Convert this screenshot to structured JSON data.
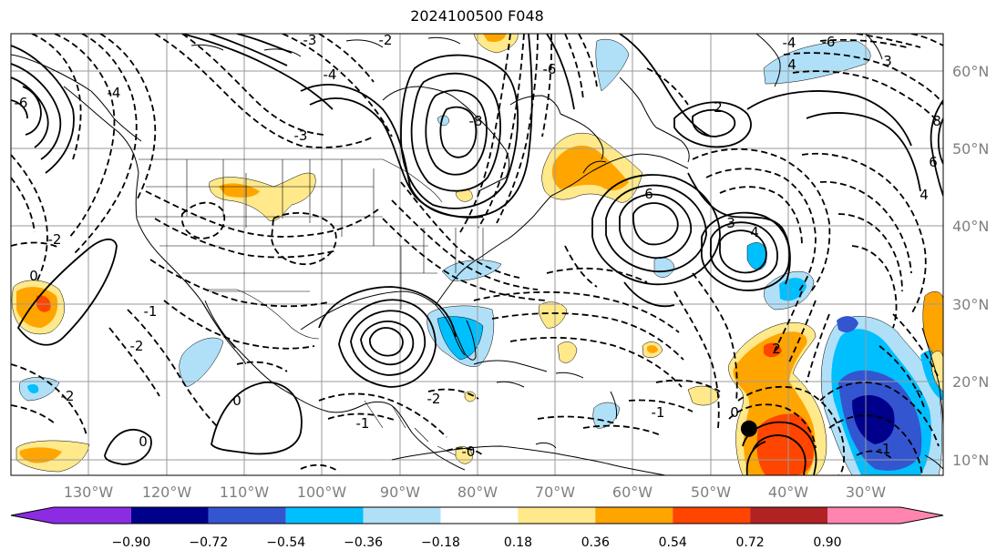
{
  "title": "2024100500 F048",
  "map": {
    "lon_labels": [
      "130°W",
      "120°W",
      "110°W",
      "100°W",
      "90°W",
      "80°W",
      "70°W",
      "60°W",
      "50°W",
      "40°W",
      "30°W"
    ],
    "lat_labels": [
      "60°N",
      "50°N",
      "40°N",
      "30°N",
      "20°N",
      "10°N"
    ],
    "contour_labels": [
      "-3",
      "-4",
      "-6",
      "-8",
      "-2",
      "-3",
      "3",
      "4",
      "-1",
      "-2",
      "0",
      "-1",
      "-2",
      "-4",
      "-6",
      "3",
      "4",
      "2",
      "6",
      "8",
      "6",
      "4",
      "-2",
      "-1",
      "0",
      "-1",
      "-2",
      "-0",
      "2",
      "0",
      "-4",
      "-1",
      "0",
      "-6"
    ],
    "marker": {
      "lon": -40.0,
      "lat": 14.0,
      "name": "storm-center-marker"
    }
  },
  "colorbar": {
    "ticks": [
      "−0.90",
      "−0.72",
      "−0.54",
      "−0.36",
      "−0.18",
      "0.18",
      "0.36",
      "0.54",
      "0.72",
      "0.90"
    ],
    "colors": [
      "#8b2be2",
      "#00008b",
      "#3455d0",
      "#00bfff",
      "#b0e0f8",
      "#ffffff",
      "#ffe98a",
      "#ffa500",
      "#ff4500",
      "#b22222",
      "#ff85b0"
    ]
  }
}
